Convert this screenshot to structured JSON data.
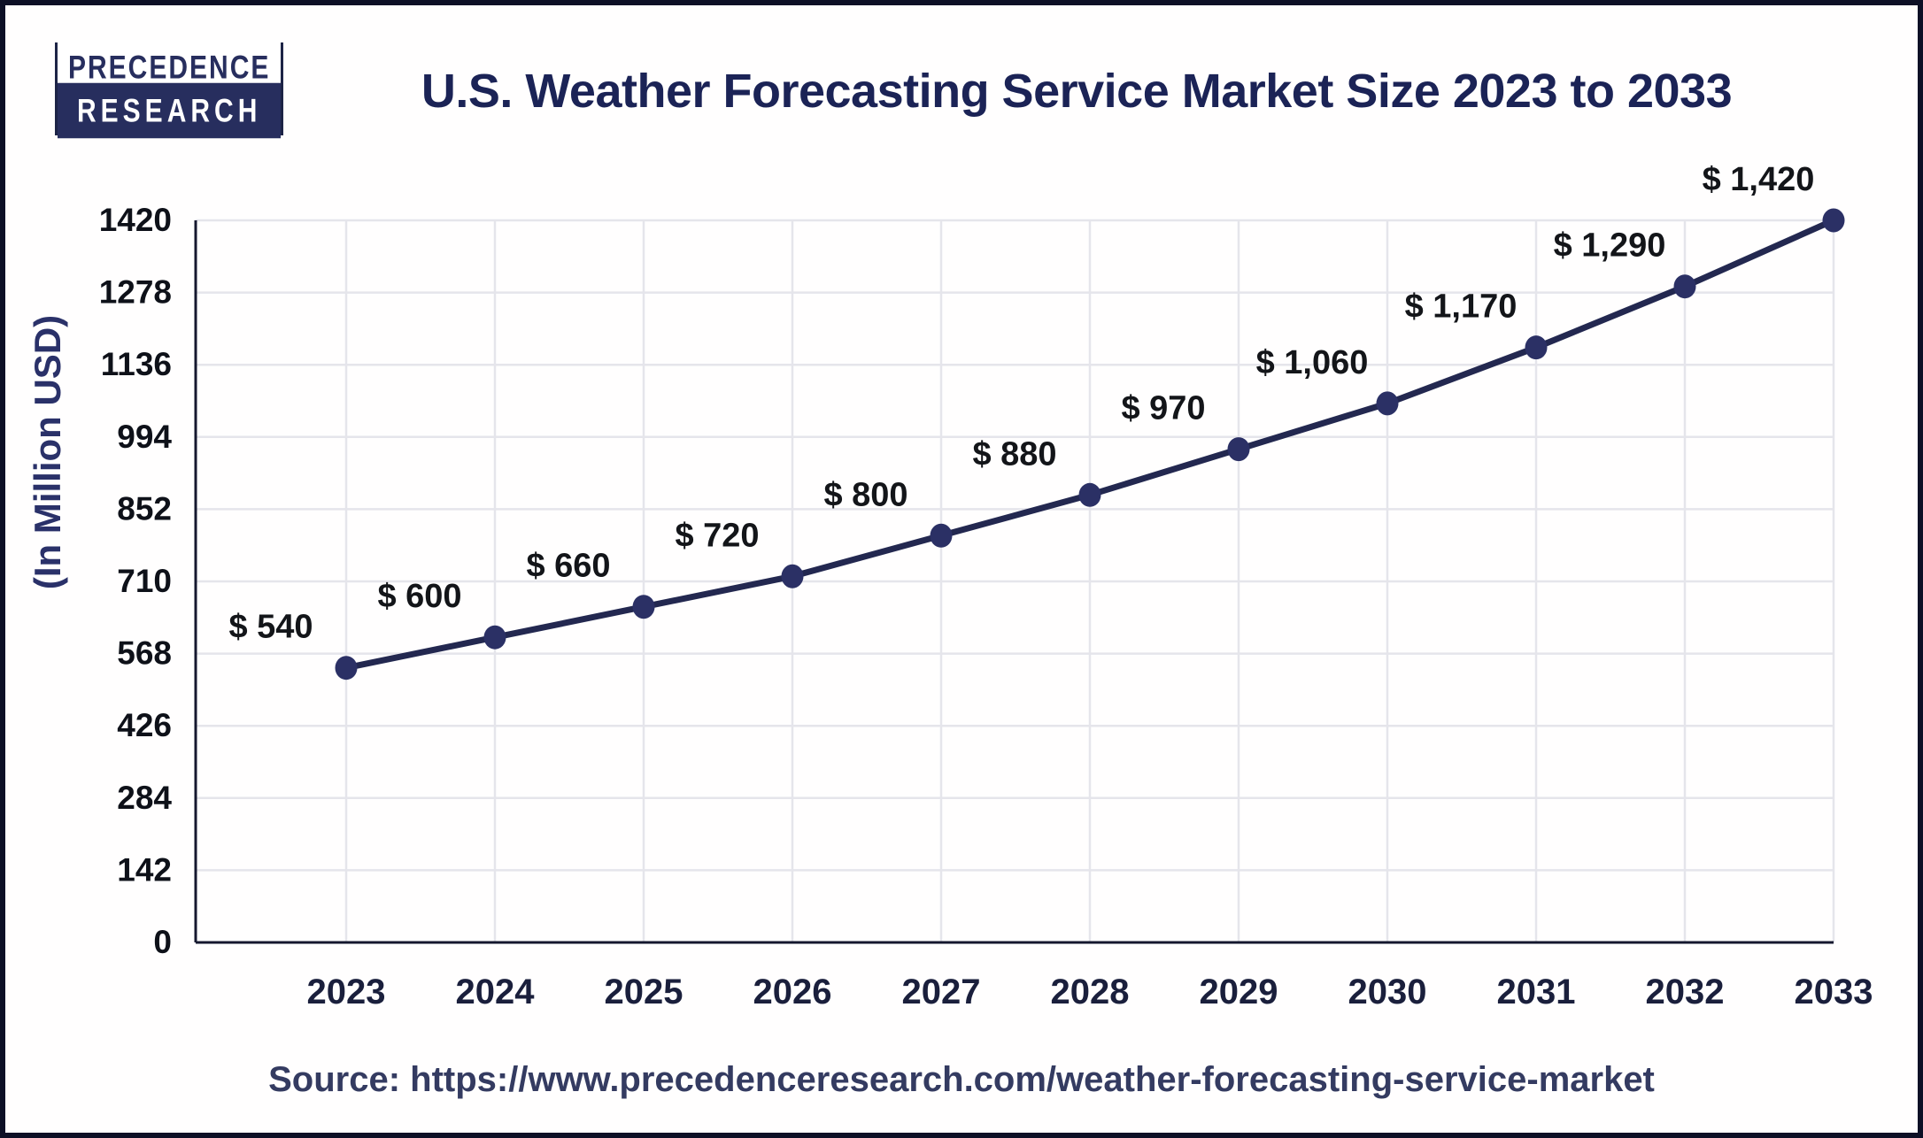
{
  "logo": {
    "line1": "PRECEDENCE",
    "line2": "RESEARCH"
  },
  "header": {
    "title": "U.S. Weather Forecasting Service Market Size 2023 to 2033"
  },
  "source": {
    "label": "Source:",
    "url": "https://www.precedenceresearch.com/weather-forecasting-service-market"
  },
  "chart_data": {
    "type": "line",
    "title": "U.S. Weather Forecasting Service Market Size 2023 to 2033",
    "categories": [
      "2023",
      "2024",
      "2025",
      "2026",
      "2027",
      "2028",
      "2029",
      "2030",
      "2031",
      "2032",
      "2033"
    ],
    "values": [
      540,
      600,
      660,
      720,
      800,
      880,
      970,
      1060,
      1170,
      1290,
      1420
    ],
    "value_labels": [
      "$ 540",
      "$ 600",
      "$ 660",
      "$ 720",
      "$ 800",
      "$ 880",
      "$ 970",
      "$ 1,060",
      "$ 1,170",
      "$ 1,290",
      "$ 1,420"
    ],
    "xlabel": "",
    "ylabel": "(In Million USD)",
    "ylim": [
      0,
      1420
    ],
    "yticks": [
      0,
      142,
      284,
      426,
      568,
      710,
      852,
      994,
      1136,
      1278,
      1420
    ],
    "grid": true,
    "legend": "none",
    "colors": {
      "line": "#232850",
      "marker": "#2b3065",
      "grid": "#e5e5eb",
      "axis": "#15182f",
      "tick_label": "#0e1119",
      "x_label": "#1a1f3c",
      "point_label": "#131519",
      "y_axis_title": "#2a3169"
    }
  }
}
